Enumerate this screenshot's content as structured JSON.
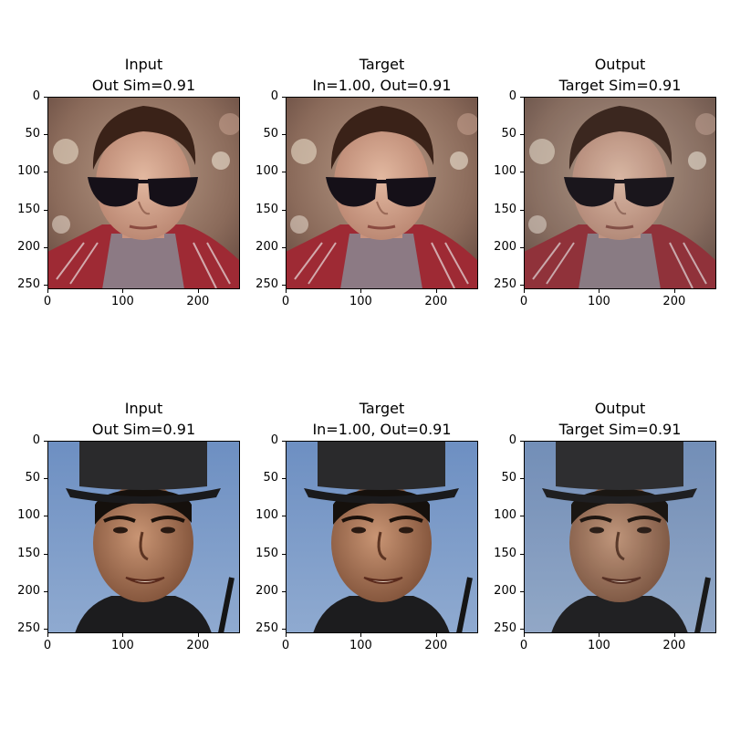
{
  "figure": {
    "panels": [
      {
        "title_line1": "Input",
        "title_line2": "Out Sim=0.91",
        "subject": "man-sunglasses-scarf"
      },
      {
        "title_line1": "Target",
        "title_line2": "In=1.00, Out=0.91",
        "subject": "man-sunglasses-scarf"
      },
      {
        "title_line1": "Output",
        "title_line2": "Target Sim=0.91",
        "subject": "man-sunglasses-scarf"
      },
      {
        "title_line1": "Input",
        "title_line2": "Out Sim=0.91",
        "subject": "man-black-hat"
      },
      {
        "title_line1": "Target",
        "title_line2": "In=1.00, Out=0.91",
        "subject": "man-black-hat"
      },
      {
        "title_line1": "Output",
        "title_line2": "Target Sim=0.91",
        "subject": "man-black-hat"
      }
    ],
    "y_ticks": [
      "0",
      "50",
      "100",
      "150",
      "200",
      "250"
    ],
    "x_ticks": [
      "0",
      "100",
      "200"
    ]
  }
}
